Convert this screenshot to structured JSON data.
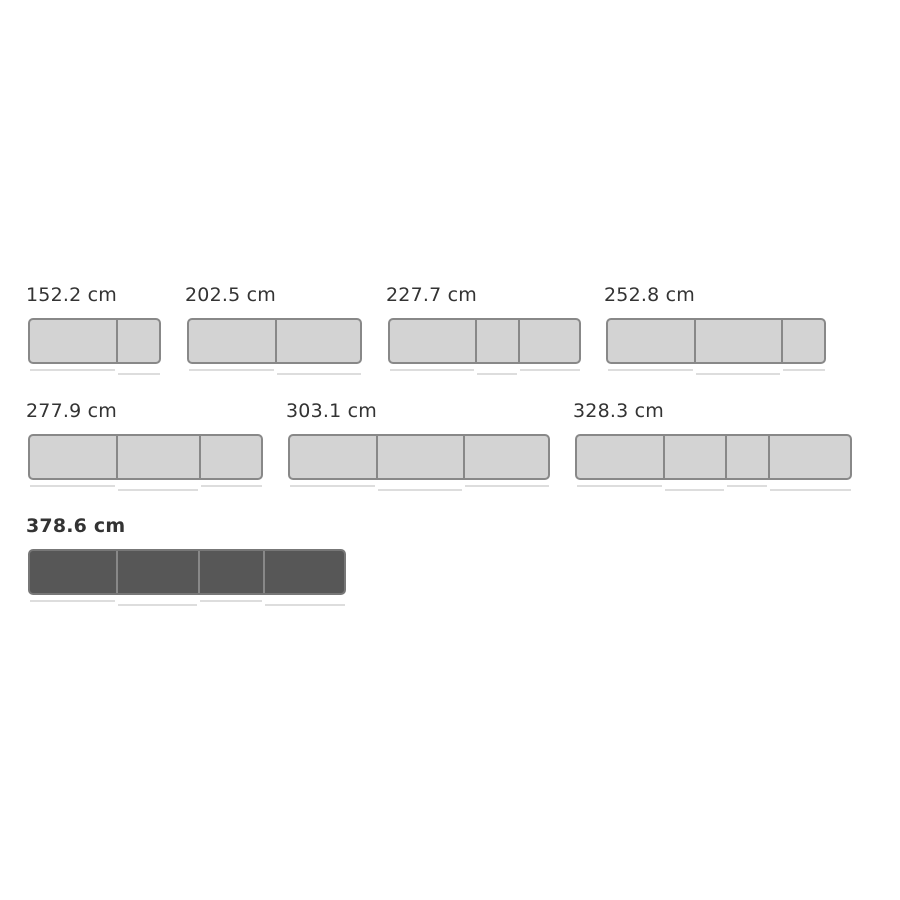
{
  "size_options": [
    {
      "label": "152.2 cm",
      "selected": false
    },
    {
      "label": "202.5 cm",
      "selected": false
    },
    {
      "label": "227.7 cm",
      "selected": false
    },
    {
      "label": "252.8 cm",
      "selected": false
    },
    {
      "label": "277.9 cm",
      "selected": false
    },
    {
      "label": "303.1 cm",
      "selected": false
    },
    {
      "label": "328.3 cm",
      "selected": false
    },
    {
      "label": "378.6 cm",
      "selected": true
    }
  ],
  "colors": {
    "unselected_fill": "#d3d3d3",
    "selected_fill": "#575757",
    "border": "#888888"
  }
}
